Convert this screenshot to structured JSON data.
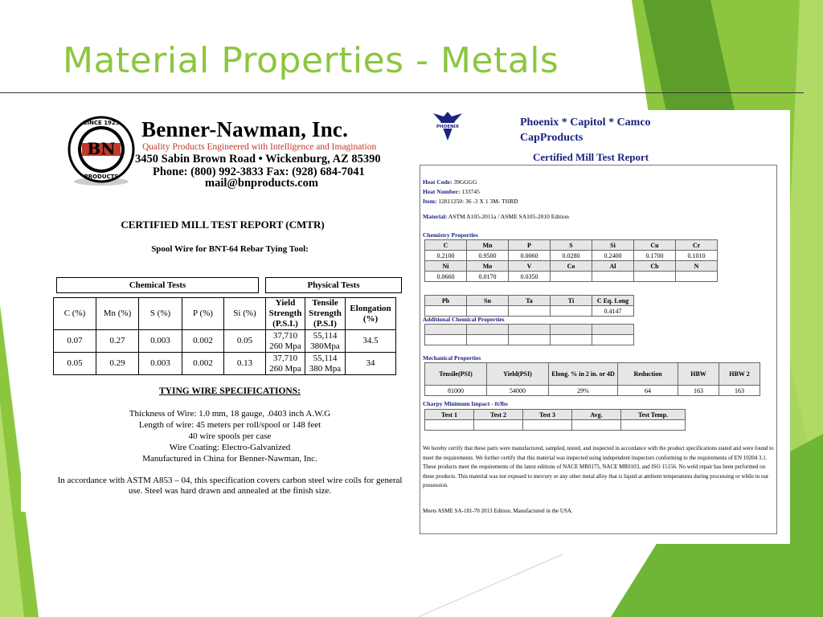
{
  "slide": {
    "title": "Material Properties - Metals"
  },
  "benner": {
    "logo_text": {
      "top": "SINCE 1925",
      "mark": "BN",
      "bottom": "PRODUCTS"
    },
    "company": "Benner-Nawman, Inc.",
    "tagline": "Quality Products Engineered with Intelligence and Imagination",
    "address": "3450 Sabin Brown Road • Wickenburg, AZ 85390",
    "phone": "Phone: (800) 992-3833 Fax: (928) 684-7041",
    "email": "mail@bnproducts.com",
    "report_title": "CERTIFIED MILL TEST REPORT (CMTR)",
    "subtitle": "Spool Wire for BNT-64 Rebar Tying Tool:",
    "group_chemical": "Chemical Tests",
    "group_physical": "Physical Tests",
    "headers": [
      "C (%)",
      "Mn (%)",
      "S (%)",
      "P (%)",
      "Si (%)",
      "Yield Strength (P.S.I.)",
      "Tensile Strength (P.S.I)",
      "Elongation (%)"
    ],
    "rows": [
      {
        "c": "0.07",
        "mn": "0.27",
        "s": "0.003",
        "p": "0.002",
        "si": "0.05",
        "yield1": "37,710",
        "yield2": "260 Mpa",
        "tensile1": "55,114",
        "tensile2": "380Mpa",
        "elong": "34.5"
      },
      {
        "c": "0.05",
        "mn": "0.29",
        "s": "0.003",
        "p": "0.002",
        "si": "0.13",
        "yield1": "37,710",
        "yield2": "260 Mpa",
        "tensile1": "55,114",
        "tensile2": "380 Mpa",
        "elong": "34"
      }
    ],
    "specs_title": "TYING WIRE SPECIFICATIONS:",
    "specs": [
      "Thickness of Wire: 1.0 mm, 18 gauge, .0403 inch A.W.G",
      "Length of wire: 45 meters per roll/spool or 148 feet",
      "40 wire spools per case",
      "Wire Coating: Electro-Galvanized",
      "Manufactured in China for Benner-Nawman, Inc."
    ],
    "accordance": "In accordance with ASTM A853 – 04, this specification covers carbon steel wire coils for general use.  Steel was hard drawn and annealed at the finish size."
  },
  "phoenix": {
    "logo_label": "PHOENIX",
    "name_line1": "Phoenix * Capitol * Camco",
    "name_line2": "CapProducts",
    "report_title": "Certified Mill Test Report",
    "heat_code_label": "Heat Code:",
    "heat_code": "39GGGG",
    "heat_number_label": "Heat Number:",
    "heat_number": "133745",
    "item_label": "Item:",
    "item": "12811250: 36 -3 X 1 3M- THRD",
    "material_label": "Material:",
    "material": "ASTM A105-2011a / ASME SA105-2010 Edition",
    "chem_title": "Chemistry Properties",
    "chem_rows": [
      {
        "h": [
          "C",
          "Mn",
          "P",
          "S",
          "Si",
          "Cu",
          "Cr"
        ],
        "v": [
          "0.2100",
          "0.9500",
          "0.0060",
          "0.0280",
          "0.2400",
          "0.1700",
          "0.1010"
        ]
      },
      {
        "h": [
          "Ni",
          "Mo",
          "V",
          "Co",
          "Al",
          "Cb",
          "N"
        ],
        "v": [
          "0.0660",
          "0.0170",
          "0.0350",
          "",
          "",
          "",
          ""
        ]
      },
      {
        "h": [
          "Pb",
          "Sn",
          "Ta",
          "Ti",
          "C Eq. Long"
        ],
        "v": [
          "",
          "",
          "",
          "",
          "0.4147"
        ]
      }
    ],
    "addl_title": "Additional Chemical Properties",
    "mech_title": "Mechanical Properties",
    "mech_headers": [
      "Tensile(PSI)",
      "Yield(PSI)",
      "Elong. % in 2 in. or 4D",
      "Reduction",
      "HBW",
      "HBW 2"
    ],
    "mech_values": [
      "81000",
      "54000",
      "29%",
      "64",
      "163",
      "163"
    ],
    "charpy_title": "Charpy Minimum Impact - ft/lbs",
    "charpy_headers": [
      "Test 1",
      "Test 2",
      "Test 3",
      "Avg.",
      "Test Temp."
    ],
    "certify": "We hereby certify that these parts were manufactured, sampled, tested, and inspected in accordance with the product specifications stated and were found to meet the requirements. We further certify that this material was inspected using independent inspectors conforming to the requirements of EN 10204 3.1. These products meet the requirements of the latest editions of NACE MR0175, NACE MR0103, and ISO 15156. No weld repair has been performed on these products. This material was not exposed to mercury or any other metal alloy that is liquid at ambient temperatures during processing or while in our possession.",
    "meets": "Meets ASME SA-181-70 2013 Edition. Manufactured in the USA."
  },
  "colors": {
    "title_green": "#8cc63f",
    "accent_dark": "#5d9e2b",
    "accent_light": "#b5dd6c",
    "report_blue": "#1a237e"
  }
}
